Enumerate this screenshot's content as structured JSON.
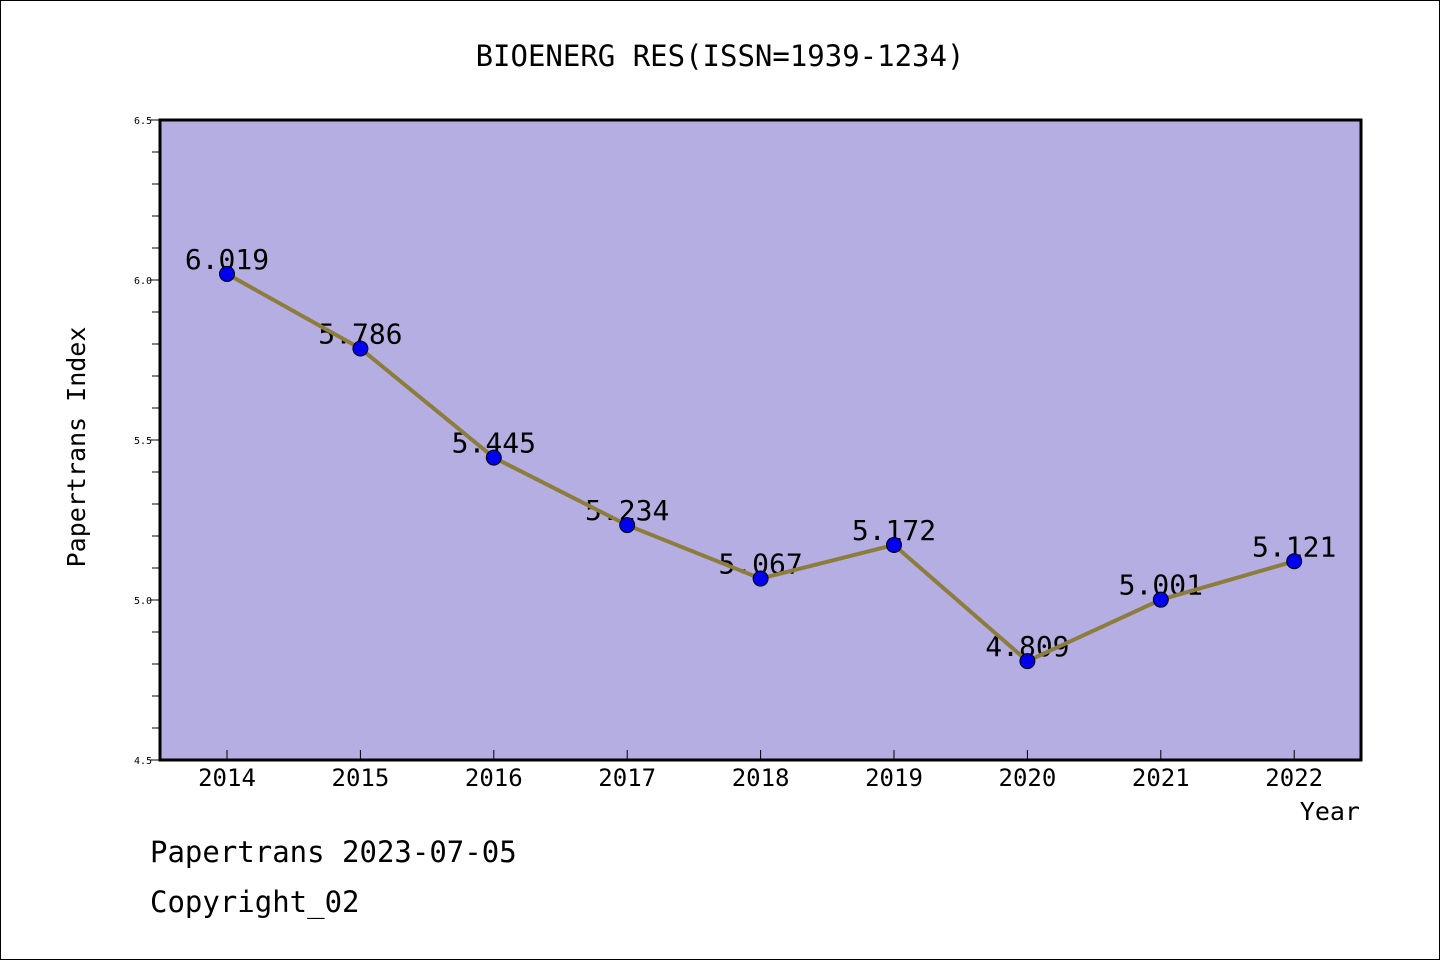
{
  "chart_data": {
    "type": "line",
    "title": "BIOENERG RES(ISSN=1939-1234)",
    "xlabel": "Year",
    "ylabel": "Papertrans Index",
    "categories": [
      "2014",
      "2015",
      "2016",
      "2017",
      "2018",
      "2019",
      "2020",
      "2021",
      "2022"
    ],
    "values": [
      6.019,
      5.786,
      5.445,
      5.234,
      5.067,
      5.172,
      4.809,
      5.001,
      5.121
    ],
    "data_labels": [
      "6.019",
      "5.786",
      "5.445",
      "5.234",
      "5.067",
      "5.172",
      "4.809",
      "5.001",
      "5.121"
    ],
    "ylim": [
      4.5,
      6.5
    ],
    "yticks": [
      "4.5",
      "5.0",
      "5.5",
      "6.0",
      "6.5"
    ],
    "grid": false,
    "colors": {
      "plot_background": "#b5aee2",
      "line": "#8c7d3c",
      "marker": "#0000ee"
    }
  },
  "footer": {
    "line1": "Papertrans 2023-07-05",
    "line2": "Copyright_02"
  }
}
